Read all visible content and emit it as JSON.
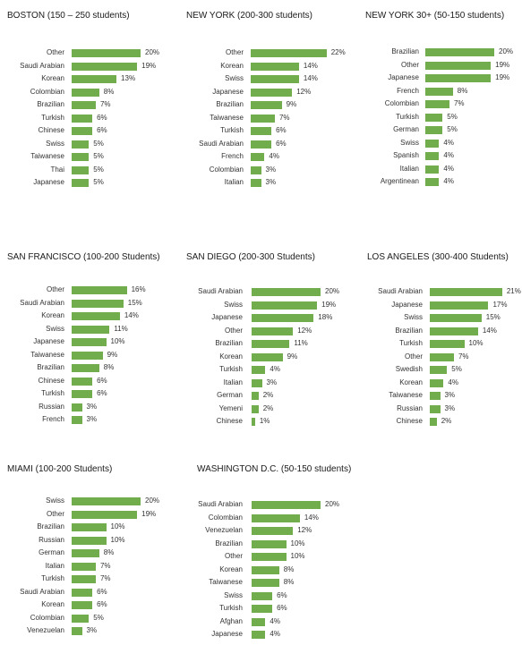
{
  "colors": {
    "bar": "#72ad4d"
  },
  "chart_data": [
    {
      "type": "bar",
      "orientation": "horizontal",
      "title": "BOSTON (150 – 250 students)",
      "categories": [
        "Other",
        "Saudi Arabian",
        "Korean",
        "Colombian",
        "Brazilian",
        "Turkish",
        "Chinese",
        "Swiss",
        "Taiwanese",
        "Thai",
        "Japanese"
      ],
      "values": [
        20,
        19,
        13,
        8,
        7,
        6,
        6,
        5,
        5,
        5,
        5
      ],
      "value_labels": [
        "20%",
        "19%",
        "13%",
        "8%",
        "7%",
        "6%",
        "6%",
        "5%",
        "5%",
        "5%",
        "5%"
      ],
      "xlim": [
        0,
        22
      ]
    },
    {
      "type": "bar",
      "orientation": "horizontal",
      "title": "NEW YORK (200-300 students)",
      "categories": [
        "Other",
        "Korean",
        "Swiss",
        "Japanese",
        "Brazilian",
        "Taiwanese",
        "Turkish",
        "Saudi Arabian",
        "French",
        "Colombian",
        "Italian"
      ],
      "values": [
        22,
        14,
        14,
        12,
        9,
        7,
        6,
        6,
        4,
        3,
        3
      ],
      "value_labels": [
        "22%",
        "14%",
        "14%",
        "12%",
        "9%",
        "7%",
        "6%",
        "6%",
        "4%",
        "3%",
        "3%"
      ],
      "xlim": [
        0,
        22
      ]
    },
    {
      "type": "bar",
      "orientation": "horizontal",
      "title": "NEW YORK 30+ (50-150 students)",
      "categories": [
        "Brazilian",
        "Other",
        "Japanese",
        "French",
        "Colombian",
        "Turkish",
        "German",
        "Swiss",
        "Spanish",
        "Italian",
        "Argentinean"
      ],
      "values": [
        20,
        19,
        19,
        8,
        7,
        5,
        5,
        4,
        4,
        4,
        4
      ],
      "value_labels": [
        "20%",
        "19%",
        "19%",
        "8%",
        "7%",
        "5%",
        "5%",
        "4%",
        "4%",
        "4%",
        "4%"
      ],
      "xlim": [
        0,
        22
      ]
    },
    {
      "type": "bar",
      "orientation": "horizontal",
      "title": "SAN FRANCISCO (100-200 Students)",
      "categories": [
        "Other",
        "Saudi Arabian",
        "Korean",
        "Swiss",
        "Japanese",
        "Taiwanese",
        "Brazilian",
        "Chinese",
        "Turkish",
        "Russian",
        "French"
      ],
      "values": [
        16,
        15,
        14,
        11,
        10,
        9,
        8,
        6,
        6,
        3,
        3
      ],
      "value_labels": [
        "16%",
        "15%",
        "14%",
        "11%",
        "10%",
        "9%",
        "8%",
        "6%",
        "6%",
        "3%",
        "3%"
      ],
      "xlim": [
        0,
        22
      ]
    },
    {
      "type": "bar",
      "orientation": "horizontal",
      "title": "SAN DIEGO (200-300 Students)",
      "categories": [
        "Saudi Arabian",
        "Swiss",
        "Japanese",
        "Other",
        "Brazilian",
        "Korean",
        "Turkish",
        "Italian",
        "German",
        "Yemeni",
        "Chinese"
      ],
      "values": [
        20,
        19,
        18,
        12,
        11,
        9,
        4,
        3,
        2,
        2,
        1
      ],
      "value_labels": [
        "20%",
        "19%",
        "18%",
        "12%",
        "11%",
        "9%",
        "4%",
        "3%",
        "2%",
        "2%",
        "1%"
      ],
      "xlim": [
        0,
        22
      ]
    },
    {
      "type": "bar",
      "orientation": "horizontal",
      "title": "LOS ANGELES (300-400 Students)",
      "categories": [
        "Saudi Arabian",
        "Japanese",
        "Swiss",
        "Brazilian",
        "Turkish",
        "Other",
        "Swedish",
        "Korean",
        "Taiwanese",
        "Russian",
        "Chinese"
      ],
      "values": [
        21,
        17,
        15,
        14,
        10,
        7,
        5,
        4,
        3,
        3,
        2
      ],
      "value_labels": [
        "21%",
        "17%",
        "15%",
        "14%",
        "10%",
        "7%",
        "5%",
        "4%",
        "3%",
        "3%",
        "2%"
      ],
      "xlim": [
        0,
        22
      ]
    },
    {
      "type": "bar",
      "orientation": "horizontal",
      "title": "MIAMI (100-200 Students)",
      "categories": [
        "Swiss",
        "Other",
        "Brazilian",
        "Russian",
        "German",
        "Italian",
        "Turkish",
        "Saudi Arabian",
        "Korean",
        "Colombian",
        "Venezuelan"
      ],
      "values": [
        20,
        19,
        10,
        10,
        8,
        7,
        7,
        6,
        6,
        5,
        3
      ],
      "value_labels": [
        "20%",
        "19%",
        "10%",
        "10%",
        "8%",
        "7%",
        "7%",
        "6%",
        "6%",
        "5%",
        "3%"
      ],
      "xlim": [
        0,
        22
      ]
    },
    {
      "type": "bar",
      "orientation": "horizontal",
      "title": "WASHINGTON D.C. (50-150 students)",
      "categories": [
        "Saudi Arabian",
        "Colombian",
        "Venezuelan",
        "Brazilian",
        "Other",
        "Korean",
        "Taiwanese",
        "Swiss",
        "Turkish",
        "Afghan",
        "Japanese"
      ],
      "values": [
        20,
        14,
        12,
        10,
        10,
        8,
        8,
        6,
        6,
        4,
        4
      ],
      "value_labels": [
        "20%",
        "14%",
        "12%",
        "10%",
        "10%",
        "8%",
        "8%",
        "6%",
        "6%",
        "4%",
        "4%"
      ],
      "xlim": [
        0,
        22
      ]
    }
  ]
}
